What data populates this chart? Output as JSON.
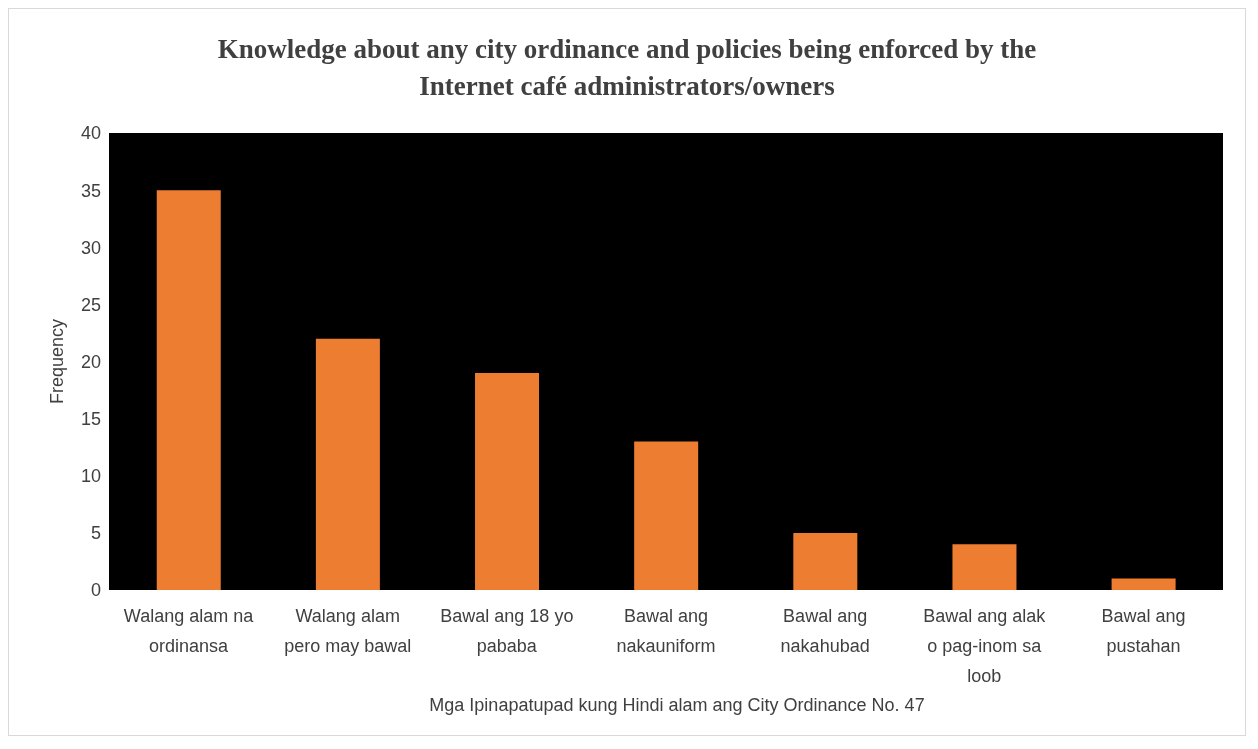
{
  "chart_data": {
    "type": "bar",
    "title": "Knowledge about any city ordinance and policies being enforced by the Internet café administrators/owners",
    "xlabel": "Mga Ipinapatupad kung Hindi alam ang City Ordinance No. 47",
    "ylabel": "Frequency",
    "categories": [
      "Walang alam na ordinansa",
      "Walang alam pero may bawal",
      "Bawal ang 18 yo pababa",
      "Bawal ang nakauniform",
      "Bawal ang nakahubad",
      "Bawal ang alak o pag-inom sa loob",
      "Bawal ang pustahan"
    ],
    "values": [
      35,
      22,
      19,
      13,
      5,
      4,
      1
    ],
    "color": "#ed7d31",
    "ylim": [
      0,
      40
    ],
    "yticks": [
      0,
      5,
      10,
      15,
      20,
      25,
      30,
      35,
      40
    ]
  }
}
